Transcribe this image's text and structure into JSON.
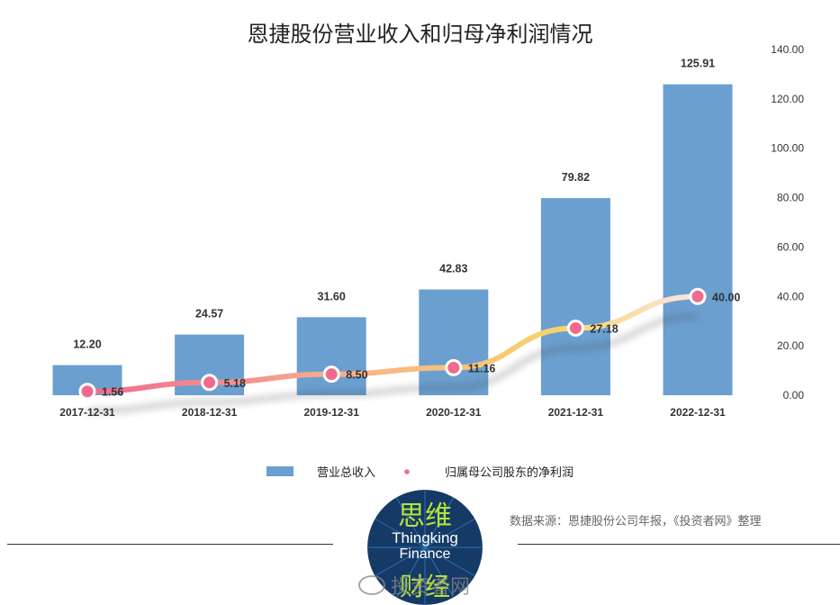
{
  "chart_data": {
    "type": "bar",
    "title": "恩捷股份营业收入和归母净利润情况",
    "categories": [
      "2017-12-31",
      "2018-12-31",
      "2019-12-31",
      "2020-12-31",
      "2021-12-31",
      "2022-12-31"
    ],
    "series": [
      {
        "name": "营业总收入",
        "kind": "bar",
        "values": [
          12.2,
          24.57,
          31.6,
          42.83,
          79.82,
          125.91
        ],
        "labels": [
          "12.20",
          "24.57",
          "31.60",
          "42.83",
          "79.82",
          "125.91"
        ]
      },
      {
        "name": "归属母公司股东的净利润",
        "kind": "line",
        "values": [
          1.56,
          5.18,
          8.5,
          11.16,
          27.18,
          40.0
        ],
        "labels": [
          "1.56",
          "5.18",
          "8.50",
          "11.16",
          "27.18",
          "40.00"
        ]
      }
    ],
    "y_axis": {
      "position": "right",
      "ylim": [
        0,
        140
      ],
      "ticks": [
        "0.00",
        "20.00",
        "40.00",
        "60.00",
        "80.00",
        "100.00",
        "120.00",
        "140.00"
      ]
    },
    "xlabel": "",
    "ylabel": "",
    "grid": false,
    "legend_position": "bottom"
  },
  "colors": {
    "bar": "#6b9fd0",
    "line_start": "#f06a8e",
    "line_mid": "#f7b48a",
    "line_end": "#f7d46a",
    "marker": "#f06a8e"
  },
  "source_note": "数据来源：恩捷股份公司年报，《投资者网》整理",
  "badge": {
    "top": "思维",
    "middle_line1": "Thingking",
    "middle_line2": "Finance",
    "bottom": "财经"
  },
  "watermark": "投资者网"
}
